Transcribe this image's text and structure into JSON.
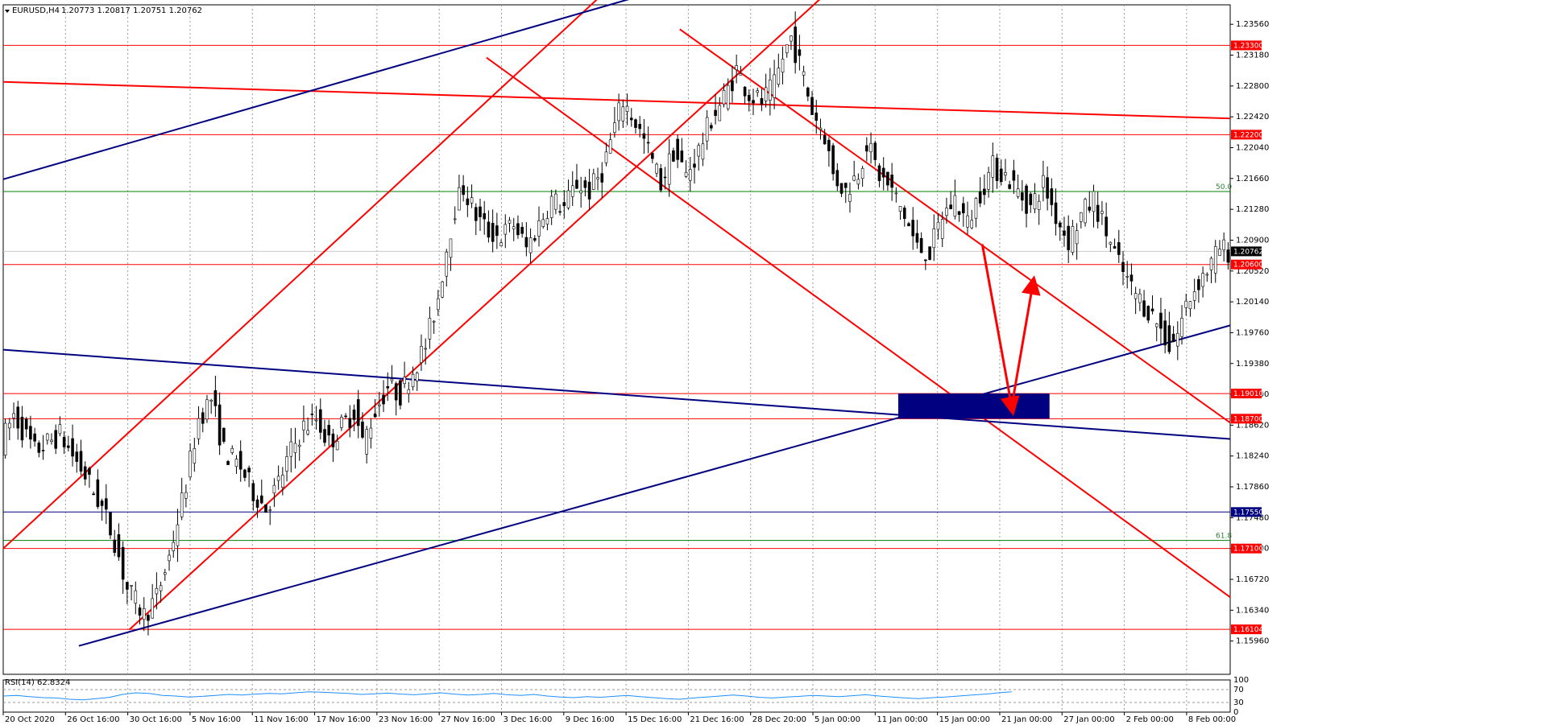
{
  "header": {
    "symbol": "EURUSD,H4",
    "ohlc": "1.20773 1.20817 1.20751 1.20762"
  },
  "indicator": {
    "label": "RSI(14) 62.8324",
    "levels": [
      "100",
      "70",
      "30",
      "0"
    ]
  },
  "colors": {
    "bull": "#000000",
    "bear": "#000000",
    "support_resistance": "#ff0000",
    "trend_blue": "#000080",
    "fib": "#008000",
    "rsi_line": "#1e90ff",
    "price_tag": "#000000"
  },
  "chart_data": {
    "type": "candlestick",
    "symbol": "EURUSD",
    "timeframe": "H4",
    "ylim": [
      1.1555,
      1.238
    ],
    "y_ticks": [
      "1.23560",
      "1.23180",
      "1.22800",
      "1.22420",
      "1.22040",
      "1.21660",
      "1.21280",
      "1.20900",
      "1.20520",
      "1.20140",
      "1.19760",
      "1.19380",
      "1.19000",
      "1.18620",
      "1.18240",
      "1.17860",
      "1.17480",
      "1.17100",
      "1.16720",
      "1.16340",
      "1.15960"
    ],
    "x_ticks": [
      "20 Oct 2020",
      "26 Oct 16:00",
      "30 Oct 16:00",
      "5 Nov 16:00",
      "11 Nov 16:00",
      "17 Nov 16:00",
      "23 Nov 16:00",
      "27 Nov 16:00",
      "3 Dec 16:00",
      "9 Dec 16:00",
      "15 Dec 16:00",
      "21 Dec 16:00",
      "28 Dec 20:00",
      "5 Jan 00:00",
      "11 Jan 00:00",
      "15 Jan 00:00",
      "21 Jan 00:00",
      "27 Jan 00:00",
      "2 Feb 00:00",
      "8 Feb 00:00"
    ],
    "price_path": [
      [
        0,
        1.184
      ],
      [
        3,
        1.1875
      ],
      [
        8,
        1.183
      ],
      [
        14,
        1.185
      ],
      [
        20,
        1.18
      ],
      [
        24,
        1.176
      ],
      [
        27,
        1.172
      ],
      [
        30,
        1.166
      ],
      [
        34,
        1.1628
      ],
      [
        37,
        1.165
      ],
      [
        40,
        1.17
      ],
      [
        44,
        1.179
      ],
      [
        47,
        1.187
      ],
      [
        50,
        1.1895
      ],
      [
        53,
        1.183
      ],
      [
        57,
        1.181
      ],
      [
        60,
        1.178
      ],
      [
        63,
        1.176
      ],
      [
        66,
        1.179
      ],
      [
        69,
        1.183
      ],
      [
        72,
        1.186
      ],
      [
        75,
        1.187
      ],
      [
        78,
        1.184
      ],
      [
        81,
        1.186
      ],
      [
        84,
        1.188
      ],
      [
        86,
        1.184
      ],
      [
        89,
        1.188
      ],
      [
        92,
        1.191
      ],
      [
        95,
        1.19
      ],
      [
        98,
        1.193
      ],
      [
        101,
        1.196
      ],
      [
        104,
        1.202
      ],
      [
        106,
        1.208
      ],
      [
        108,
        1.213
      ],
      [
        110,
        1.2155
      ],
      [
        113,
        1.212
      ],
      [
        116,
        1.21
      ],
      [
        119,
        1.2095
      ],
      [
        122,
        1.211
      ],
      [
        125,
        1.208
      ],
      [
        128,
        1.211
      ],
      [
        131,
        1.214
      ],
      [
        134,
        1.213
      ],
      [
        137,
        1.216
      ],
      [
        140,
        1.215
      ],
      [
        143,
        1.2175
      ],
      [
        146,
        1.223
      ],
      [
        148,
        1.2262
      ],
      [
        151,
        1.2235
      ],
      [
        154,
        1.22
      ],
      [
        157,
        1.216
      ],
      [
        160,
        1.22
      ],
      [
        163,
        1.217
      ],
      [
        166,
        1.22
      ],
      [
        169,
        1.224
      ],
      [
        172,
        1.2265
      ],
      [
        175,
        1.23
      ],
      [
        178,
        1.227
      ],
      [
        181,
        1.226
      ],
      [
        184,
        1.228
      ],
      [
        186,
        1.2315
      ],
      [
        188,
        1.234
      ],
      [
        191,
        1.229
      ],
      [
        193,
        1.225
      ],
      [
        196,
        1.222
      ],
      [
        198,
        1.217
      ],
      [
        201,
        1.215
      ],
      [
        204,
        1.2175
      ],
      [
        206,
        1.221
      ],
      [
        209,
        1.217
      ],
      [
        212,
        1.215
      ],
      [
        215,
        1.212
      ],
      [
        218,
        1.208
      ],
      [
        221,
        1.2075
      ],
      [
        224,
        1.212
      ],
      [
        227,
        1.214
      ],
      [
        230,
        1.211
      ],
      [
        233,
        1.215
      ],
      [
        236,
        1.218
      ],
      [
        239,
        1.217
      ],
      [
        242,
        1.215
      ],
      [
        245,
        1.213
      ],
      [
        248,
        1.216
      ],
      [
        251,
        1.212
      ],
      [
        254,
        1.209
      ],
      [
        257,
        1.212
      ],
      [
        260,
        1.214
      ],
      [
        263,
        1.21
      ],
      [
        266,
        1.206
      ],
      [
        269,
        1.203
      ],
      [
        272,
        1.201
      ],
      [
        275,
        1.199
      ],
      [
        278,
        1.196
      ],
      [
        280,
        1.1975
      ],
      [
        282,
        1.201
      ],
      [
        285,
        1.204
      ],
      [
        288,
        1.206
      ],
      [
        290,
        1.208
      ],
      [
        292,
        1.20762
      ]
    ],
    "rsi": {
      "name": "RSI(14)",
      "last": 62.8324,
      "ylim": [
        0,
        100
      ],
      "levels": [
        30,
        70
      ],
      "values": [
        50,
        52,
        48,
        45,
        44,
        40,
        38,
        42,
        46,
        55,
        60,
        58,
        52,
        50,
        47,
        49,
        52,
        55,
        53,
        56,
        58,
        57,
        60,
        63,
        62,
        60,
        58,
        55,
        57,
        59,
        56,
        54,
        57,
        60,
        56,
        53,
        55,
        58,
        54,
        52,
        55,
        50,
        47,
        45,
        48,
        46,
        49,
        52,
        48,
        45,
        42,
        40,
        44,
        47,
        50,
        53,
        50,
        46,
        44,
        47,
        49,
        52,
        50,
        48,
        51,
        54,
        50,
        47,
        44,
        42,
        45,
        47,
        50,
        53,
        56,
        60,
        63
      ]
    },
    "hlines_red": [
      "1.23300",
      "1.22200",
      "1.20600",
      "1.19010",
      "1.18700",
      "1.17100",
      "1.16104"
    ],
    "hlines_blue": [
      "1.17550"
    ],
    "price_tag": "1.20762",
    "fib_labels": [
      "50.0",
      "61.8"
    ],
    "annotations": [
      {
        "type": "trendline",
        "color": "red",
        "points": [
          [
            0,
            1.2285
          ],
          [
            292,
            1.224
          ]
        ]
      },
      {
        "type": "trendline",
        "color": "red",
        "points": [
          [
            0,
            1.171
          ],
          [
            142,
            1.239
          ]
        ]
      },
      {
        "type": "trendline",
        "color": "red",
        "points": [
          [
            30,
            1.161
          ],
          [
            195,
            1.239
          ]
        ]
      },
      {
        "type": "trendline",
        "color": "red",
        "points": [
          [
            115,
            1.2315
          ],
          [
            292,
            1.165
          ]
        ]
      },
      {
        "type": "trendline",
        "color": "red",
        "points": [
          [
            161,
            1.235
          ],
          [
            292,
            1.1865
          ]
        ]
      },
      {
        "type": "trendline",
        "color": "blue",
        "points": [
          [
            0,
            1.2165
          ],
          [
            151,
            1.239
          ]
        ]
      },
      {
        "type": "trendline",
        "color": "blue",
        "points": [
          [
            0,
            1.1955
          ],
          [
            292,
            1.1845
          ]
        ]
      },
      {
        "type": "trendline",
        "color": "blue",
        "points": [
          [
            18,
            1.159
          ],
          [
            292,
            1.1985
          ]
        ]
      },
      {
        "type": "zone",
        "color": "blue",
        "x": [
          213,
          249
        ],
        "y": [
          1.187,
          1.1901
        ]
      },
      {
        "type": "arrow",
        "color": "red",
        "points": [
          [
            233,
            1.2085
          ],
          [
            240,
            1.1885
          ]
        ]
      },
      {
        "type": "arrow",
        "color": "red",
        "points": [
          [
            240,
            1.1885
          ],
          [
            245,
            1.2035
          ]
        ]
      }
    ]
  }
}
